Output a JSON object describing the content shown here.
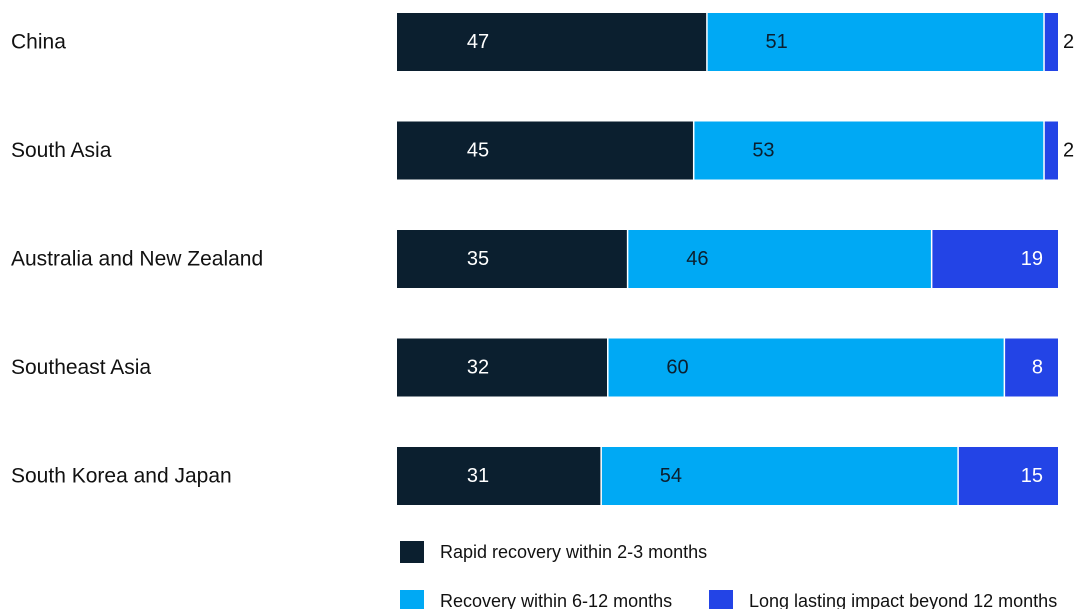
{
  "chart_data": {
    "type": "bar",
    "orientation": "horizontal",
    "stacked": true,
    "title": "",
    "xlabel": "",
    "ylabel": "",
    "xlim": [
      0,
      100
    ],
    "grid": false,
    "legend_position": "bottom",
    "categories": [
      "China",
      "South Asia",
      "Australia and New Zealand",
      "Southeast Asia",
      "South Korea and Japan"
    ],
    "series": [
      {
        "name": "Rapid recovery within 2-3 months",
        "color": "#0b1f2f",
        "label_color": "#ffffff",
        "values": [
          47,
          45,
          35,
          32,
          31
        ]
      },
      {
        "name": "Recovery within 6-12 months",
        "color": "#00a9f4",
        "label_color": "#0b1f2f",
        "values": [
          51,
          53,
          46,
          60,
          54
        ]
      },
      {
        "name": "Long lasting impact beyond 12 months",
        "color": "#2344e6",
        "label_color": "#ffffff",
        "values": [
          2,
          2,
          19,
          8,
          15
        ]
      }
    ]
  }
}
